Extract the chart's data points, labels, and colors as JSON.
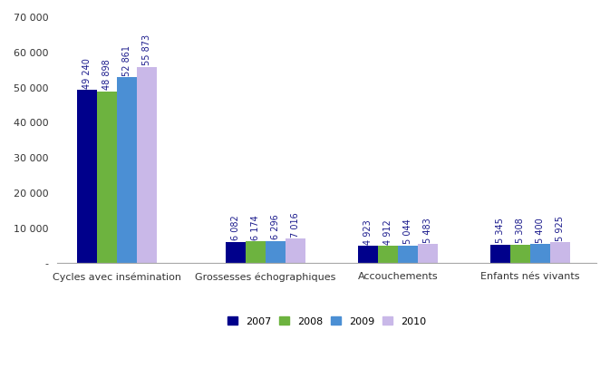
{
  "categories": [
    "Cycles avec insémination",
    "Grossesses échographiques",
    "Accouchements",
    "Enfants nés vivants"
  ],
  "years": [
    "2007",
    "2008",
    "2009",
    "2010"
  ],
  "values": [
    [
      49240,
      48898,
      52861,
      55873
    ],
    [
      6082,
      6174,
      6296,
      7016
    ],
    [
      4923,
      4912,
      5044,
      5483
    ],
    [
      5345,
      5308,
      5400,
      5925
    ]
  ],
  "colors": [
    "#00008B",
    "#6DB33F",
    "#4B8FD4",
    "#C9B8E8"
  ],
  "bar_labels": [
    [
      "49 240",
      "48 898",
      "52 861",
      "55 873"
    ],
    [
      "6 082",
      "6 174",
      "6 296",
      "7 016"
    ],
    [
      "4 923",
      "4 912",
      "5 044",
      "5 483"
    ],
    [
      "5 345",
      "5 308",
      "5 400",
      "5 925"
    ]
  ],
  "ylim": [
    0,
    70000
  ],
  "yticks": [
    0,
    10000,
    20000,
    30000,
    40000,
    50000,
    60000,
    70000
  ],
  "ytick_labels": [
    "-",
    "10 000",
    "20 000",
    "30 000",
    "40 000",
    "50 000",
    "60 000",
    "70 000"
  ],
  "legend_labels": [
    "2007",
    "2008",
    "2009",
    "2010"
  ],
  "background_color": "#FFFFFF",
  "label_fontsize": 7,
  "axis_fontsize": 8,
  "legend_fontsize": 8
}
